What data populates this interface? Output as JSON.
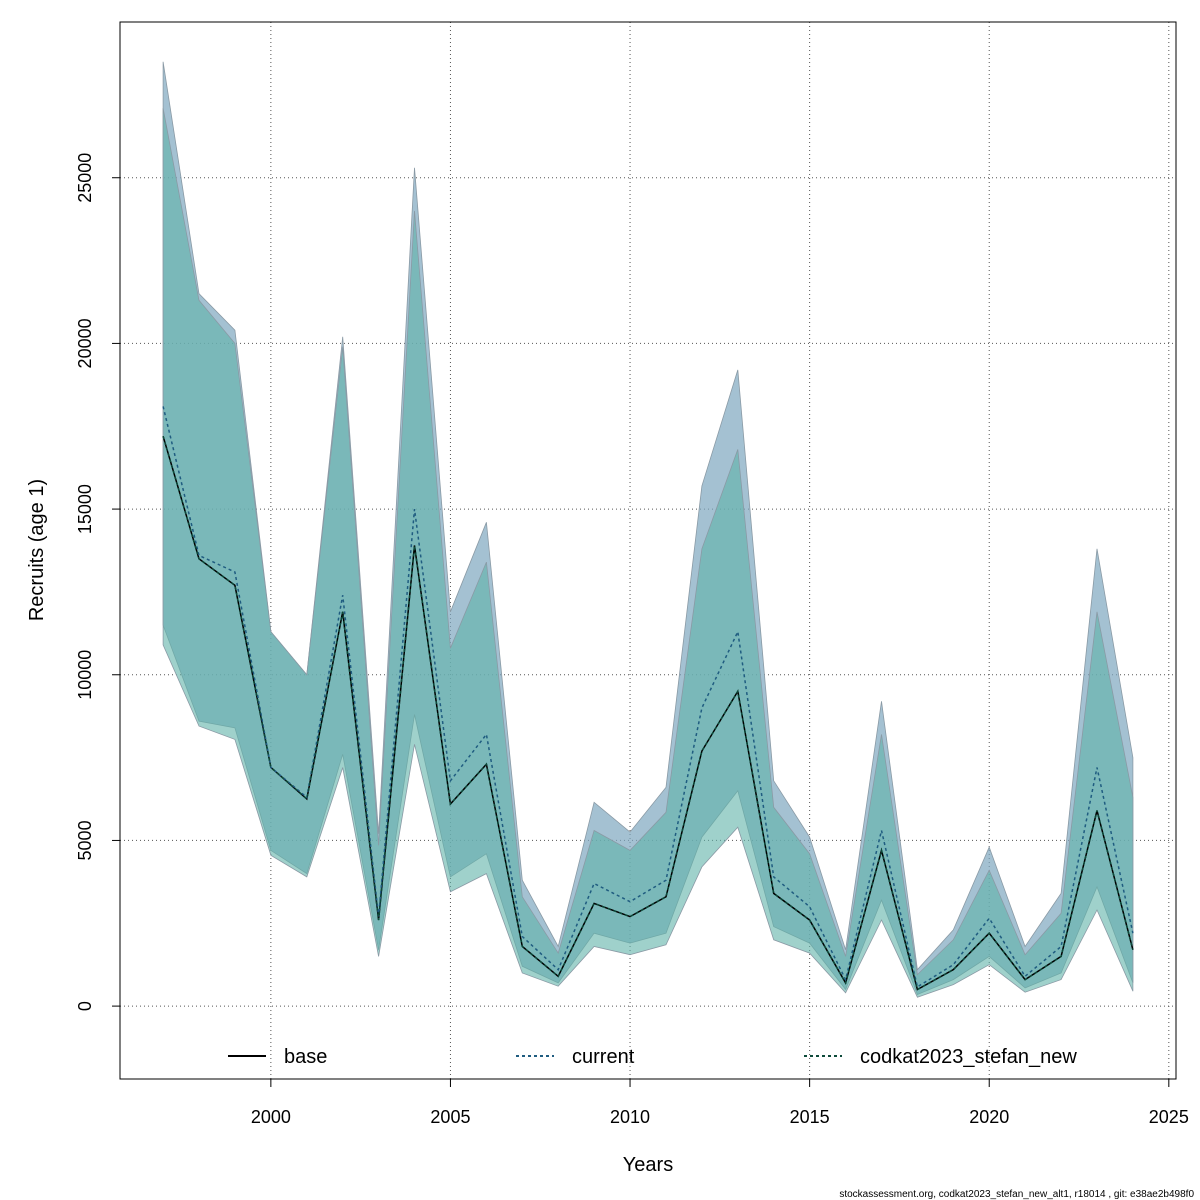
{
  "chart_data": {
    "type": "area",
    "xlabel": "Years",
    "ylabel": "Recruits (age 1)",
    "xlim": [
      1995.8,
      2025.2
    ],
    "ylim": [
      -2200,
      29700
    ],
    "xticks": [
      2000,
      2005,
      2010,
      2015,
      2020,
      2025
    ],
    "yticks": [
      0,
      5000,
      10000,
      15000,
      20000,
      25000
    ],
    "grid": true,
    "legend_position": "bottom",
    "x": [
      1997,
      1998,
      1999,
      2000,
      2001,
      2002,
      2003,
      2004,
      2005,
      2006,
      2007,
      2008,
      2009,
      2010,
      2011,
      2012,
      2013,
      2014,
      2015,
      2016,
      2017,
      2018,
      2019,
      2020,
      2021,
      2022,
      2023,
      2024
    ],
    "bands": [
      {
        "name": "current",
        "fill": "#7ea7bf",
        "lower": [
          11500,
          8600,
          8400,
          4700,
          4000,
          7600,
          1700,
          8800,
          3900,
          4600,
          1200,
          700,
          2200,
          1900,
          2200,
          5100,
          6500,
          2400,
          1900,
          500,
          3200,
          350,
          800,
          1500,
          550,
          1000,
          3600,
          700
        ],
        "upper": [
          28500,
          21500,
          20400,
          11300,
          10000,
          20200,
          5200,
          25300,
          11900,
          14600,
          3800,
          1800,
          6150,
          5250,
          6600,
          15700,
          19200,
          6800,
          5100,
          1700,
          9200,
          1100,
          2300,
          4800,
          1800,
          3400,
          13800,
          7500
        ]
      },
      {
        "name": "codkat2023_stefan_new",
        "fill": "#5fb3a8",
        "lower": [
          10900,
          8450,
          8050,
          4550,
          3900,
          7200,
          1500,
          7900,
          3450,
          4000,
          1000,
          600,
          1800,
          1550,
          1850,
          4200,
          5400,
          2000,
          1600,
          400,
          2600,
          270,
          650,
          1250,
          420,
          800,
          2900,
          450
        ],
        "upper": [
          27100,
          21300,
          20000,
          11300,
          10000,
          19900,
          4850,
          24000,
          10800,
          13400,
          3300,
          1600,
          5300,
          4700,
          5850,
          13800,
          16800,
          6000,
          4600,
          1500,
          8200,
          950,
          2000,
          4100,
          1550,
          2800,
          11900,
          6300
        ]
      }
    ],
    "series": [
      {
        "name": "base",
        "color": "#000000",
        "dash": "solid",
        "values": [
          17200,
          13500,
          12700,
          7200,
          6250,
          11900,
          2600,
          13900,
          6100,
          7300,
          1800,
          900,
          3100,
          2700,
          3300,
          7700,
          9500,
          3400,
          2600,
          700,
          4700,
          500,
          1100,
          2200,
          800,
          1500,
          5900,
          1700
        ]
      },
      {
        "name": "current",
        "color": "#1f5c80",
        "dash": "dotted",
        "values": [
          18100,
          13600,
          13100,
          7200,
          6300,
          12400,
          2700,
          15000,
          6800,
          8200,
          2100,
          1100,
          3700,
          3150,
          3800,
          9000,
          11300,
          3900,
          3000,
          800,
          5300,
          580,
          1250,
          2650,
          900,
          1800,
          7200,
          2200
        ]
      },
      {
        "name": "codkat2023_stefan_new",
        "color": "#0d4a3a",
        "dash": "dotted",
        "values": [
          17200,
          13500,
          12700,
          7200,
          6250,
          11900,
          2600,
          13900,
          6100,
          7300,
          1800,
          900,
          3100,
          2700,
          3300,
          7700,
          9500,
          3400,
          2600,
          700,
          4700,
          500,
          1100,
          2200,
          800,
          1500,
          5900,
          1700
        ]
      }
    ],
    "legend": [
      {
        "label": "base",
        "color": "#000000",
        "dash": "solid"
      },
      {
        "label": "current",
        "color": "#1f5c80",
        "dash": "dotted"
      },
      {
        "label": "codkat2023_stefan_new",
        "color": "#0d4a3a",
        "dash": "dotted"
      }
    ]
  },
  "footer": "stockassessment.org, codkat2023_stefan_new_alt1, r18014 , git: e38ae2b498f0"
}
